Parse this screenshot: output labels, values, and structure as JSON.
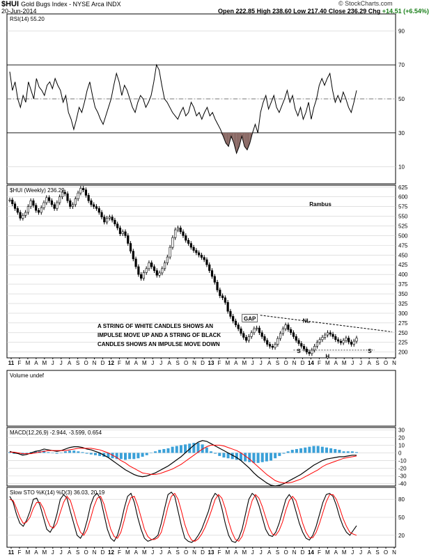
{
  "header": {
    "symbol": "$HUI",
    "name": "Gold Bugs Index - NYSE Arca INDX",
    "date": "20-Jun-2014",
    "watermark": "© StockCharts.com",
    "open_label": "Open",
    "open": "222.85",
    "high_label": "High",
    "high": "238.60",
    "low_label": "Low",
    "low": "217.40",
    "close_label": "Close",
    "close": "236.29",
    "chg_label": "Chg",
    "chg": "+14.51 (+6.54%)"
  },
  "colors": {
    "up": "#000000",
    "rsi_fill": "#8b6a66",
    "signal": "#ff0000",
    "histogram": "#3aa0d8",
    "grid": "#cfcfcf",
    "positive": "#1a7f1a",
    "accent_blue": "#1f78b4"
  },
  "x_axis": {
    "labels": [
      "11",
      "F",
      "M",
      "A",
      "M",
      "J",
      "J",
      "A",
      "S",
      "O",
      "N",
      "D",
      "12",
      "F",
      "M",
      "A",
      "M",
      "J",
      "J",
      "A",
      "S",
      "O",
      "N",
      "D",
      "13",
      "F",
      "M",
      "A",
      "M",
      "J",
      "J",
      "A",
      "S",
      "O",
      "N",
      "D",
      "14",
      "F",
      "M",
      "A",
      "M",
      "J",
      "J",
      "A",
      "S",
      "O",
      "N"
    ],
    "bold_year_labels": [
      "11",
      "12",
      "13",
      "14"
    ]
  },
  "chart_data": [
    {
      "type": "line",
      "panel": "rsi",
      "title": "RSI(14) 55.20",
      "yticks": [
        10,
        30,
        50,
        70,
        90
      ],
      "ylim": [
        0,
        100
      ],
      "overbought": 70,
      "oversold": 30,
      "midline": 50,
      "series": [
        {
          "values": [
            66,
            55,
            60,
            50,
            45,
            52,
            48,
            60,
            55,
            50,
            62,
            57,
            55,
            52,
            58,
            60,
            56,
            62,
            58,
            55,
            48,
            52,
            42,
            38,
            32,
            38,
            45,
            42,
            48,
            55,
            60,
            52,
            45,
            42,
            38,
            35,
            40,
            45,
            50,
            58,
            65,
            60,
            52,
            58,
            55,
            50,
            45,
            42,
            48,
            52,
            50,
            45,
            48,
            52,
            60,
            70,
            67,
            58,
            50,
            48,
            45,
            42,
            40,
            38,
            42,
            45,
            40,
            42,
            48,
            45,
            40,
            42,
            38,
            42,
            45,
            40,
            42,
            38,
            35,
            32,
            28,
            24,
            22,
            28,
            24,
            18,
            22,
            28,
            22,
            20,
            24,
            30,
            35,
            30,
            42,
            48,
            52,
            44,
            48,
            52,
            45,
            42,
            46,
            50,
            55,
            48,
            52,
            44,
            40,
            45,
            38,
            42,
            48,
            38,
            45,
            50,
            58,
            62,
            58,
            62,
            65,
            55,
            48,
            52,
            48,
            54,
            50,
            45,
            42,
            48,
            55
          ]
        }
      ]
    },
    {
      "type": "line",
      "panel": "price",
      "title": "$HUI (Weekly) 236.29",
      "yticks": [
        200,
        225,
        250,
        275,
        300,
        325,
        350,
        375,
        400,
        425,
        450,
        475,
        500,
        525,
        550,
        575,
        600,
        625
      ],
      "ylim": [
        185,
        630
      ],
      "annotations": [
        "GAP",
        "NL",
        "S",
        "H",
        "S",
        "Rambus"
      ],
      "comment_lines": [
        "A STRING OF WHITE CANDLES SHOWS AN",
        "IMPULSE MOVE UP AND A STRING OF BLACK",
        "CANDLES SHOWS AN IMPULSE MOVE DOWN"
      ],
      "neckline": {
        "start": 295,
        "end": 252
      },
      "support": 205,
      "series": [
        {
          "values": [
            592,
            582,
            570,
            560,
            545,
            552,
            560,
            575,
            590,
            578,
            565,
            560,
            572,
            585,
            598,
            590,
            580,
            570,
            585,
            600,
            612,
            608,
            590,
            575,
            580,
            595,
            610,
            622,
            618,
            604,
            590,
            580,
            575,
            570,
            560,
            548,
            535,
            545,
            548,
            540,
            530,
            520,
            505,
            510,
            500,
            480,
            460,
            440,
            420,
            400,
            390,
            405,
            415,
            430,
            420,
            410,
            398,
            404,
            415,
            430,
            445,
            470,
            495,
            515,
            520,
            510,
            500,
            488,
            480,
            470,
            462,
            456,
            450,
            444,
            438,
            425,
            410,
            395,
            380,
            360,
            345,
            340,
            328,
            305,
            292,
            280,
            270,
            260,
            248,
            238,
            230,
            240,
            250,
            260,
            262,
            250,
            240,
            230,
            220,
            215,
            212,
            220,
            235,
            248,
            260,
            270,
            258,
            250,
            240,
            230,
            222,
            215,
            208,
            200,
            196,
            205,
            215,
            225,
            232,
            238,
            244,
            250,
            246,
            240,
            232,
            228,
            224,
            230,
            236,
            226,
            220,
            228,
            236
          ]
        }
      ]
    },
    {
      "type": "line",
      "panel": "volume",
      "title": "Volume undef",
      "series": []
    },
    {
      "type": "line",
      "panel": "macd",
      "title": "MACD(12,26,9) -2.944, -3.599, 0.654",
      "yticks": [
        -40,
        -30,
        -20,
        -10,
        0,
        10,
        20,
        30
      ],
      "ylim": [
        -43,
        33
      ],
      "series": [
        {
          "name": "MACD",
          "values": [
            2,
            0,
            -1,
            -3,
            -2,
            0,
            2,
            3,
            5,
            4,
            3,
            2,
            3,
            5,
            7,
            8,
            8,
            7,
            5,
            4,
            2,
            0,
            -3,
            -6,
            -10,
            -14,
            -18,
            -22,
            -25,
            -28,
            -30,
            -31,
            -30,
            -28,
            -26,
            -23,
            -20,
            -17,
            -13,
            -9,
            -5,
            0,
            5,
            10,
            14,
            16,
            15,
            12,
            9,
            6,
            3,
            0,
            -3,
            -6,
            -10,
            -15,
            -20,
            -26,
            -31,
            -35,
            -39,
            -42,
            -43,
            -42,
            -40,
            -37,
            -34,
            -31,
            -28,
            -24,
            -20,
            -16,
            -13,
            -10,
            -8,
            -7,
            -6,
            -5,
            -5,
            -4,
            -3,
            -3
          ]
        },
        {
          "name": "Signal",
          "values": [
            1,
            1,
            0,
            -1,
            -1,
            -1,
            0,
            1,
            2,
            3,
            3,
            3,
            3,
            3,
            4,
            5,
            6,
            6,
            6,
            6,
            5,
            4,
            2,
            0,
            -3,
            -6,
            -10,
            -13,
            -17,
            -20,
            -23,
            -26,
            -27,
            -28,
            -28,
            -27,
            -25,
            -23,
            -21,
            -18,
            -15,
            -11,
            -7,
            -3,
            1,
            5,
            8,
            10,
            10,
            10,
            9,
            7,
            5,
            3,
            0,
            -4,
            -8,
            -13,
            -18,
            -23,
            -28,
            -32,
            -36,
            -38,
            -39,
            -39,
            -38,
            -36,
            -34,
            -31,
            -28,
            -25,
            -22,
            -18,
            -15,
            -13,
            -11,
            -9,
            -7,
            -6,
            -5,
            -4
          ]
        },
        {
          "name": "Histogram",
          "values": [
            1,
            -1,
            -1,
            -2,
            -1,
            1,
            2,
            2,
            3,
            1,
            0,
            -1,
            0,
            2,
            3,
            3,
            2,
            1,
            -1,
            -2,
            -3,
            -4,
            -5,
            -6,
            -7,
            -8,
            -8,
            -9,
            -8,
            -8,
            -7,
            -5,
            -3,
            0,
            2,
            4,
            5,
            6,
            8,
            9,
            10,
            11,
            12,
            13,
            13,
            11,
            7,
            2,
            -1,
            -4,
            -6,
            -7,
            -8,
            -9,
            -10,
            -11,
            -12,
            -13,
            -13,
            -12,
            -11,
            -10,
            -7,
            -4,
            -1,
            2,
            4,
            5,
            6,
            7,
            8,
            9,
            9,
            8,
            7,
            6,
            5,
            4,
            2,
            2,
            2,
            1
          ]
        }
      ]
    },
    {
      "type": "line",
      "panel": "stoch",
      "title": "Slow STO %K(14) %D(3) 36.03, 20.19",
      "yticks": [
        20,
        50,
        80
      ],
      "ylim": [
        0,
        100
      ],
      "series": [
        {
          "name": "%K",
          "values": [
            85,
            75,
            55,
            40,
            35,
            45,
            60,
            80,
            82,
            70,
            50,
            30,
            25,
            35,
            55,
            80,
            88,
            82,
            60,
            40,
            20,
            15,
            25,
            45,
            70,
            85,
            90,
            80,
            55,
            30,
            15,
            10,
            20,
            40,
            65,
            85,
            90,
            75,
            50,
            30,
            15,
            10,
            12,
            15,
            20,
            40,
            65,
            88,
            92,
            85,
            60,
            35,
            15,
            10,
            8,
            12,
            20,
            30,
            45,
            60,
            80,
            90,
            85,
            65,
            40,
            20,
            10,
            8,
            15,
            30,
            55,
            80,
            90,
            85,
            70,
            50,
            30,
            20,
            18,
            25,
            40,
            60,
            80,
            88,
            80,
            60,
            40,
            25,
            15,
            12,
            20,
            35,
            55,
            75,
            88,
            90,
            85,
            70,
            50,
            35,
            25,
            20,
            28,
            36
          ]
        },
        {
          "name": "%D",
          "values": [
            80,
            78,
            65,
            50,
            40,
            42,
            50,
            65,
            75,
            75,
            65,
            48,
            35,
            32,
            40,
            58,
            75,
            85,
            78,
            60,
            40,
            25,
            20,
            30,
            48,
            68,
            82,
            85,
            72,
            50,
            30,
            18,
            15,
            25,
            45,
            68,
            83,
            85,
            70,
            50,
            30,
            18,
            13,
            13,
            16,
            25,
            45,
            68,
            85,
            90,
            80,
            60,
            38,
            22,
            12,
            10,
            14,
            22,
            33,
            47,
            63,
            80,
            88,
            82,
            65,
            43,
            25,
            13,
            10,
            18,
            35,
            58,
            78,
            88,
            82,
            68,
            50,
            33,
            22,
            20,
            28,
            42,
            62,
            78,
            85,
            78,
            60,
            40,
            25,
            16,
            16,
            25,
            40,
            58,
            76,
            88,
            88,
            80,
            65,
            48,
            35,
            25,
            22,
            20
          ]
        }
      ]
    }
  ]
}
